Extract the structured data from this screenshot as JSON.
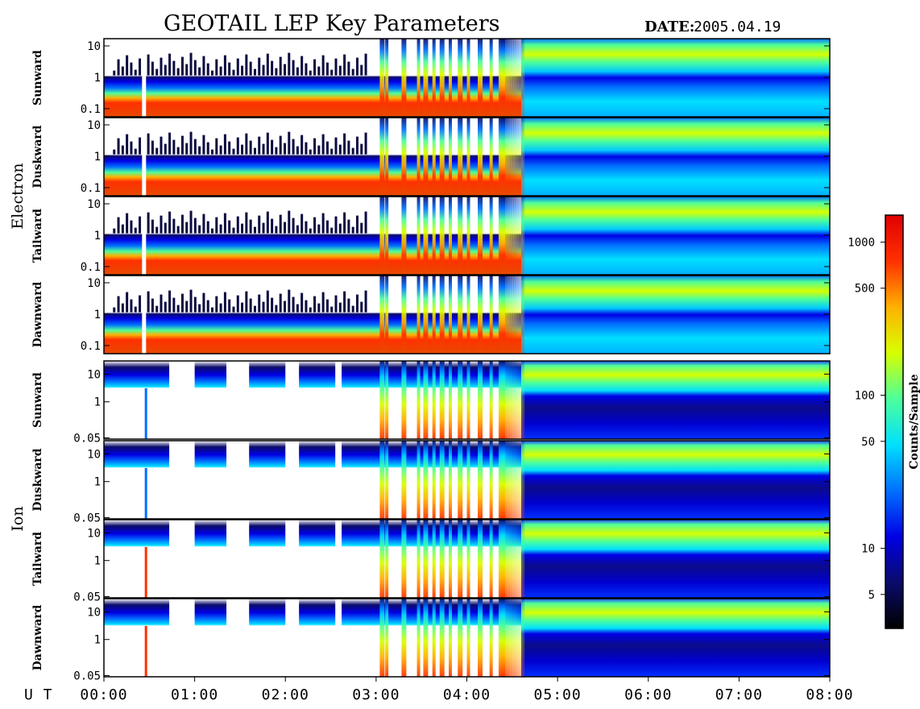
{
  "header": {
    "title": "GEOTAIL LEP Key Parameters",
    "date_label": "DATE:",
    "date_value": "2005.04.19"
  },
  "groups": [
    {
      "name": "Electron"
    },
    {
      "name": "Ion"
    }
  ],
  "colors": {
    "colormap": [
      "#000000",
      "#0b0b6a",
      "#0000e6",
      "#0070ff",
      "#00e0ff",
      "#4dff9a",
      "#d8ff00",
      "#ffb000",
      "#ff3000",
      "#e00000"
    ],
    "background": "#ffffff"
  },
  "chart_data": {
    "type": "heatmap",
    "xaxis": {
      "prefix": "U T",
      "range": [
        "00:00",
        "08:00"
      ],
      "ticks": [
        "00:00",
        "01:00",
        "02:00",
        "03:00",
        "04:00",
        "05:00",
        "06:00",
        "07:00",
        "08:00"
      ]
    },
    "panels": [
      {
        "species": "Electron",
        "label": "Sunward",
        "y_ticks": [
          "10",
          "1",
          "0.1"
        ]
      },
      {
        "species": "Electron",
        "label": "Duskward",
        "y_ticks": [
          "10",
          "1",
          "0.1"
        ]
      },
      {
        "species": "Electron",
        "label": "Tailward",
        "y_ticks": [
          "10",
          "1",
          "0.1"
        ]
      },
      {
        "species": "Electron",
        "label": "Dawnward",
        "y_ticks": [
          "10",
          "1",
          "0.1"
        ]
      },
      {
        "species": "Ion",
        "label": "Sunward",
        "y_ticks": [
          "10",
          "1",
          "0.05"
        ]
      },
      {
        "species": "Ion",
        "label": "Duskward",
        "y_ticks": [
          "10",
          "1",
          "0.05"
        ]
      },
      {
        "species": "Ion",
        "label": "Tailward",
        "y_ticks": [
          "10",
          "1",
          "0.05"
        ]
      },
      {
        "species": "Ion",
        "label": "Dawnward",
        "y_ticks": [
          "10",
          "1",
          "0.05"
        ]
      }
    ],
    "colorbar": {
      "label": "Counts/Sample",
      "scale": "log",
      "range": [
        3,
        1500
      ],
      "ticks": [
        {
          "value": 5,
          "label": "5"
        },
        {
          "value": 10,
          "label": "10"
        },
        {
          "value": 50,
          "label": "50"
        },
        {
          "value": 100,
          "label": "100"
        },
        {
          "value": 500,
          "label": "500"
        },
        {
          "value": 1000,
          "label": "1000"
        }
      ]
    }
  }
}
